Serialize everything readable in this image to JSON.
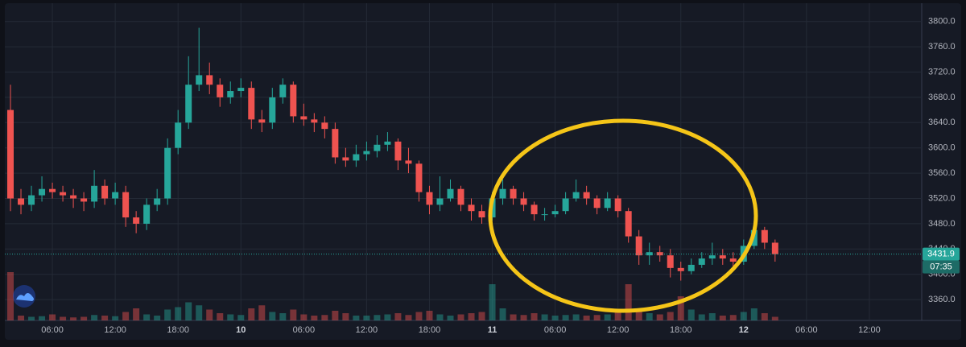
{
  "chart_data": {
    "type": "candlestick",
    "up_color": "#26a69a",
    "down_color": "#ef5350",
    "grid": true,
    "xlim": [
      1,
      89
    ],
    "ylim": [
      3327,
      3834
    ],
    "xticks": [
      {
        "value": 6,
        "label": "06:00"
      },
      {
        "value": 12,
        "label": "12:00"
      },
      {
        "value": 18,
        "label": "18:00"
      },
      {
        "value": 24,
        "label": "10"
      },
      {
        "value": 30,
        "label": "06:00"
      },
      {
        "value": 36,
        "label": "12:00"
      },
      {
        "value": 42,
        "label": "18:00"
      },
      {
        "value": 48,
        "label": "11"
      },
      {
        "value": 54,
        "label": "06:00"
      },
      {
        "value": 60,
        "label": "12:00"
      },
      {
        "value": 66,
        "label": "18:00"
      },
      {
        "value": 72,
        "label": "12"
      },
      {
        "value": 78,
        "label": "06:00"
      },
      {
        "value": 84,
        "label": "12:00"
      }
    ],
    "yticks": [
      {
        "value": 3360,
        "label": "3360.0"
      },
      {
        "value": 3400,
        "label": "3400.0"
      },
      {
        "value": 3440,
        "label": "3440.0"
      },
      {
        "value": 3480,
        "label": "3480.0"
      },
      {
        "value": 3520,
        "label": "3520.0"
      },
      {
        "value": 3560,
        "label": "3560.0"
      },
      {
        "value": 3600,
        "label": "3600.0"
      },
      {
        "value": 3640,
        "label": "3640.0"
      },
      {
        "value": 3680,
        "label": "3680.0"
      },
      {
        "value": 3720,
        "label": "3720.0"
      },
      {
        "value": 3760,
        "label": "3760.0"
      },
      {
        "value": 3800,
        "label": "3800.0"
      }
    ],
    "x": [
      2,
      3,
      4,
      5,
      6,
      7,
      8,
      9,
      10,
      11,
      12,
      13,
      14,
      15,
      16,
      17,
      18,
      19,
      20,
      21,
      22,
      23,
      24,
      25,
      26,
      27,
      28,
      29,
      30,
      31,
      32,
      33,
      34,
      35,
      36,
      37,
      38,
      39,
      40,
      41,
      42,
      43,
      44,
      45,
      46,
      47,
      48,
      49,
      50,
      51,
      52,
      53,
      54,
      55,
      56,
      57,
      58,
      59,
      60,
      61,
      62,
      63,
      64,
      65,
      66,
      67,
      68,
      69,
      70,
      71,
      72,
      73,
      74,
      75
    ],
    "open": [
      3660,
      3520,
      3510,
      3525,
      3535,
      3530,
      3525,
      3520,
      3515,
      3540,
      3520,
      3530,
      3490,
      3480,
      3510,
      3520,
      3600,
      3640,
      3700,
      3715,
      3700,
      3680,
      3690,
      3695,
      3645,
      3640,
      3680,
      3700,
      3650,
      3645,
      3640,
      3630,
      3585,
      3580,
      3590,
      3595,
      3605,
      3610,
      3580,
      3575,
      3530,
      3510,
      3520,
      3535,
      3510,
      3500,
      3490,
      3520,
      3535,
      3520,
      3510,
      3495,
      3495,
      3500,
      3520,
      3530,
      3520,
      3505,
      3520,
      3500,
      3460,
      3430,
      3435,
      3430,
      3410,
      3405,
      3415,
      3425,
      3430,
      3425,
      3420,
      3445,
      3470,
      3450
    ],
    "high": [
      3700,
      3535,
      3540,
      3555,
      3545,
      3540,
      3535,
      3530,
      3565,
      3550,
      3545,
      3540,
      3500,
      3520,
      3535,
      3615,
      3660,
      3745,
      3790,
      3735,
      3710,
      3705,
      3710,
      3705,
      3660,
      3695,
      3710,
      3705,
      3670,
      3655,
      3650,
      3640,
      3600,
      3605,
      3610,
      3620,
      3625,
      3615,
      3600,
      3580,
      3540,
      3555,
      3550,
      3540,
      3520,
      3510,
      3530,
      3550,
      3540,
      3530,
      3515,
      3505,
      3510,
      3530,
      3550,
      3540,
      3525,
      3530,
      3525,
      3505,
      3470,
      3450,
      3445,
      3440,
      3420,
      3425,
      3435,
      3450,
      3440,
      3435,
      3455,
      3485,
      3475,
      3455
    ],
    "low": [
      3500,
      3495,
      3500,
      3515,
      3520,
      3515,
      3505,
      3500,
      3505,
      3510,
      3510,
      3475,
      3465,
      3470,
      3500,
      3510,
      3590,
      3630,
      3690,
      3685,
      3665,
      3670,
      3680,
      3630,
      3625,
      3630,
      3670,
      3640,
      3635,
      3625,
      3615,
      3575,
      3570,
      3570,
      3580,
      3585,
      3595,
      3565,
      3560,
      3515,
      3495,
      3500,
      3515,
      3500,
      3485,
      3480,
      3485,
      3510,
      3510,
      3500,
      3485,
      3485,
      3490,
      3495,
      3515,
      3510,
      3495,
      3500,
      3490,
      3450,
      3415,
      3415,
      3420,
      3395,
      3390,
      3400,
      3410,
      3415,
      3415,
      3410,
      3415,
      3440,
      3440,
      3420
    ],
    "close": [
      3520,
      3510,
      3525,
      3535,
      3530,
      3525,
      3520,
      3515,
      3540,
      3520,
      3530,
      3490,
      3480,
      3510,
      3520,
      3600,
      3640,
      3700,
      3715,
      3700,
      3680,
      3690,
      3695,
      3645,
      3640,
      3680,
      3700,
      3650,
      3645,
      3640,
      3630,
      3585,
      3580,
      3590,
      3595,
      3605,
      3610,
      3580,
      3575,
      3530,
      3510,
      3520,
      3535,
      3510,
      3500,
      3490,
      3520,
      3535,
      3520,
      3510,
      3495,
      3495,
      3500,
      3520,
      3530,
      3520,
      3505,
      3520,
      3500,
      3460,
      3430,
      3435,
      3430,
      3410,
      3405,
      3415,
      3425,
      3430,
      3425,
      3420,
      3445,
      3470,
      3450,
      3431.9
    ],
    "volume": [
      80,
      8,
      6,
      7,
      10,
      6,
      5,
      6,
      9,
      8,
      7,
      14,
      20,
      10,
      8,
      18,
      22,
      30,
      25,
      18,
      12,
      10,
      9,
      20,
      25,
      14,
      12,
      18,
      10,
      8,
      9,
      16,
      12,
      8,
      8,
      9,
      10,
      12,
      9,
      14,
      16,
      10,
      8,
      10,
      12,
      14,
      60,
      20,
      10,
      9,
      12,
      10,
      8,
      9,
      10,
      8,
      9,
      10,
      14,
      60,
      20,
      12,
      10,
      14,
      40,
      18,
      10,
      12,
      8,
      9,
      14,
      20,
      12,
      6
    ],
    "last_price": 3431.9,
    "countdown": "07:35"
  }
}
